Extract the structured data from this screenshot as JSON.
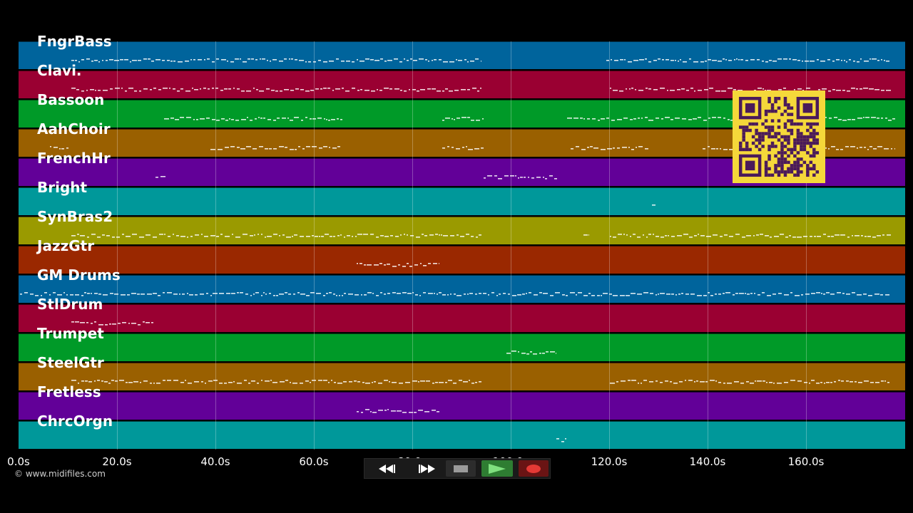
{
  "tracks": [
    {
      "name": "FngrBass",
      "color": "#00649c"
    },
    {
      "name": "Clavi.",
      "color": "#9a0032"
    },
    {
      "name": "Bassoon",
      "color": "#009a28"
    },
    {
      "name": "AahChoir",
      "color": "#9a6000"
    },
    {
      "name": "FrenchHr",
      "color": "#620098"
    },
    {
      "name": "Bright",
      "color": "#00989a"
    },
    {
      "name": "SynBras2",
      "color": "#9a9a00"
    },
    {
      "name": "JazzGtr",
      "color": "#9a2800"
    },
    {
      "name": "GM Drums",
      "color": "#00649c"
    },
    {
      "name": "StlDrum",
      "color": "#9a0032"
    },
    {
      "name": "Trumpet",
      "color": "#009a28"
    },
    {
      "name": "SteelGtr",
      "color": "#9a6000"
    },
    {
      "name": "Fretless",
      "color": "#620098"
    },
    {
      "name": "ChrcOrgn",
      "color": "#00989a"
    }
  ],
  "timeline": {
    "ticks": [
      "0.0s",
      "20.0s",
      "40.0s",
      "60.0s",
      "80.0s",
      "100.0s",
      "120.0s",
      "140.0s",
      "160.0s"
    ]
  },
  "copyright": "© www.midifiles.com",
  "transport": {
    "buttons": [
      {
        "name": "rewind-button",
        "icon": "rewind-icon"
      },
      {
        "name": "fast-forward-button",
        "icon": "fast-forward-icon"
      },
      {
        "name": "stop-button",
        "icon": "stop-icon"
      },
      {
        "name": "play-button",
        "icon": "play-icon"
      },
      {
        "name": "record-button",
        "icon": "record-icon"
      }
    ],
    "colors": {
      "play": "#2e7d32",
      "record": "#8e1c1c",
      "stop": "#444444"
    }
  },
  "overlay": {
    "icon": "qr-code-icon",
    "fg": "#4a1a5a",
    "bg": "#f5d83a"
  }
}
